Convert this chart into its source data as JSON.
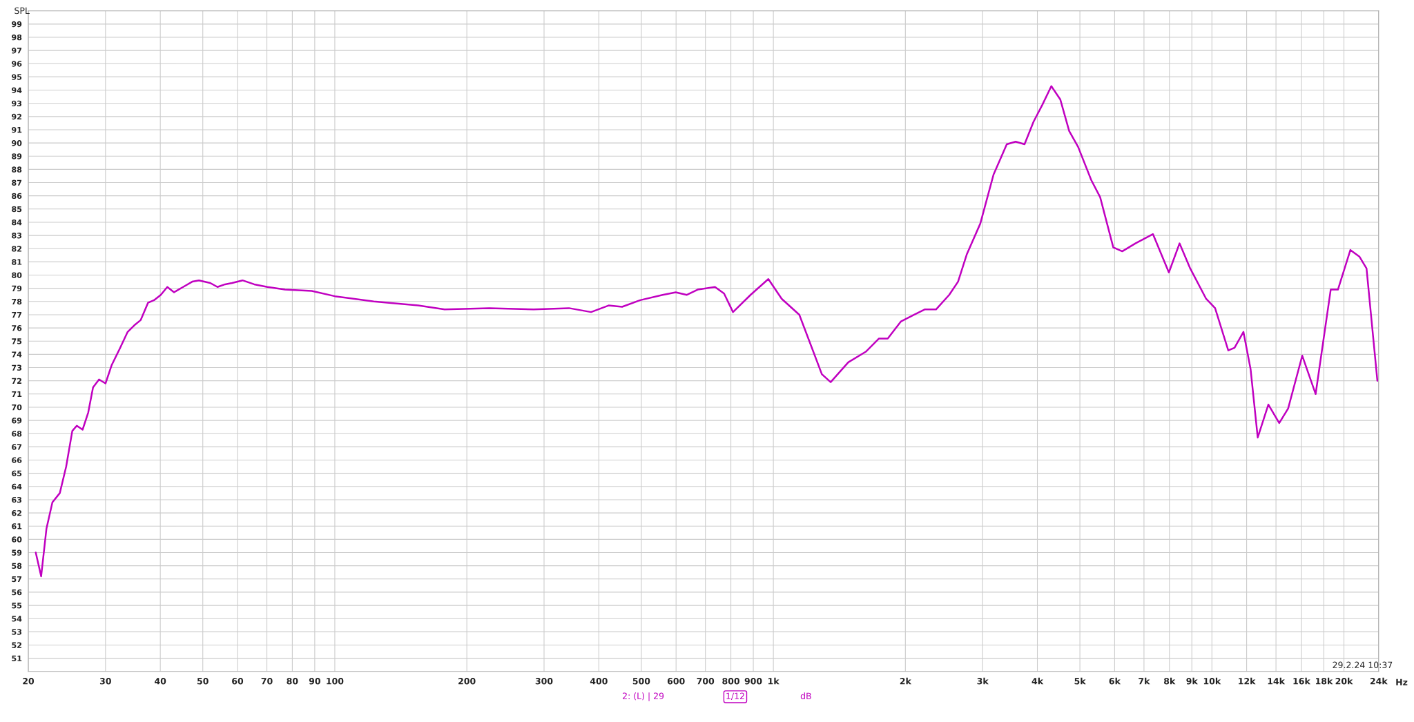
{
  "chart_data": {
    "type": "line",
    "ylabel": "SPL",
    "x": [
      20.8,
      21.4,
      22.0,
      22.7,
      23.6,
      24.4,
      25.2,
      25.8,
      26.6,
      27.4,
      28.1,
      29.0,
      30.0,
      31.0,
      32.3,
      33.7,
      34.9,
      36.1,
      37.5,
      38.7,
      40.1,
      41.5,
      43.0,
      45.1,
      47.3,
      49.0,
      52.0,
      54.0,
      56.2,
      58.3,
      61.6,
      65.5,
      70.2,
      77.0,
      88.6,
      100,
      122.7,
      155,
      178,
      225,
      284,
      342,
      384,
      421,
      452,
      497,
      559,
      599,
      635,
      672,
      736,
      772,
      809,
      887,
      974,
      1045,
      1146,
      1290,
      1351,
      1482,
      1625,
      1741,
      1823,
      1955,
      2095,
      2213,
      2349,
      2517,
      2637,
      2763,
      2964,
      3177,
      3406,
      3568,
      3739,
      3919,
      4107,
      4304,
      4510,
      4727,
      4954,
      5306,
      5561,
      5958,
      6245,
      6692,
      7339,
      7978,
      8437,
      8923,
      9703,
      10168,
      10897,
      11260,
      11800,
      12250,
      12720,
      13450,
      14240,
      14920,
      16070,
      17240,
      18660,
      19380,
      20690,
      21690,
      22520,
      23840
    ],
    "series": [
      {
        "color": "#c000c0",
        "values": [
          59.0,
          57.2,
          60.8,
          62.8,
          63.5,
          65.5,
          68.2,
          68.6,
          68.3,
          69.6,
          71.5,
          72.1,
          71.8,
          73.2,
          74.4,
          75.7,
          76.2,
          76.6,
          77.9,
          78.1,
          78.5,
          79.1,
          78.7,
          79.1,
          79.5,
          79.6,
          79.4,
          79.1,
          79.3,
          79.4,
          79.6,
          79.3,
          79.1,
          78.9,
          78.8,
          78.4,
          78.0,
          77.7,
          77.4,
          77.5,
          77.4,
          77.5,
          77.2,
          77.7,
          77.6,
          78.1,
          78.5,
          78.7,
          78.5,
          78.9,
          79.1,
          78.6,
          77.2,
          78.5,
          79.7,
          78.2,
          77.0,
          72.5,
          71.9,
          73.4,
          74.2,
          75.2,
          75.2,
          76.5,
          77.0,
          77.4,
          77.4,
          78.5,
          79.5,
          81.6,
          83.9,
          87.6,
          89.9,
          90.1,
          89.9,
          91.6,
          92.9,
          94.3,
          93.3,
          90.9,
          89.7,
          87.2,
          85.9,
          82.1,
          81.8,
          82.4,
          83.1,
          80.2,
          82.4,
          80.5,
          78.2,
          77.5,
          74.3,
          74.5,
          75.7,
          72.9,
          67.7,
          70.2,
          68.8,
          69.9,
          73.9,
          71.0,
          78.9,
          78.9,
          81.9,
          81.4,
          80.5,
          72.0
        ]
      }
    ],
    "log": "x",
    "xlim": [
      20,
      24000
    ],
    "ylim": [
      50,
      100
    ],
    "xticks": [
      20,
      30,
      40,
      50,
      60,
      70,
      80,
      90,
      100,
      200,
      300,
      400,
      500,
      600,
      700,
      800,
      900,
      {
        "value": 1000,
        "label": "1k"
      },
      {
        "value": 2000,
        "label": "2k"
      },
      {
        "value": 3000,
        "label": "3k"
      },
      {
        "value": 4000,
        "label": "4k"
      },
      {
        "value": 5000,
        "label": "5k"
      },
      {
        "value": 6000,
        "label": "6k"
      },
      {
        "value": 7000,
        "label": "7k"
      },
      {
        "value": 8000,
        "label": "8k"
      },
      {
        "value": 9000,
        "label": "9k"
      },
      {
        "value": 10000,
        "label": "10k"
      },
      {
        "value": 12000,
        "label": "12k"
      },
      {
        "value": 14000,
        "label": "14k"
      },
      {
        "value": 16000,
        "label": "16k"
      },
      {
        "value": 18000,
        "label": "18k"
      },
      {
        "value": 20000,
        "label": "20k"
      },
      {
        "value": 24000,
        "label": "24k"
      }
    ],
    "xlabel": "Hz",
    "yticks": [
      51,
      52,
      53,
      54,
      55,
      56,
      57,
      58,
      59,
      60,
      61,
      62,
      63,
      64,
      65,
      66,
      67,
      68,
      69,
      70,
      71,
      72,
      73,
      74,
      75,
      76,
      77,
      78,
      79,
      80,
      81,
      82,
      83,
      84,
      85,
      86,
      87,
      88,
      89,
      90,
      91,
      92,
      93,
      94,
      95,
      96,
      97,
      98,
      99
    ],
    "grid": true,
    "line_style": "solid",
    "marker": "none",
    "annotations": [
      "29.2.24 10:37",
      "2: (L) | 29",
      "1/12",
      "dB"
    ]
  }
}
